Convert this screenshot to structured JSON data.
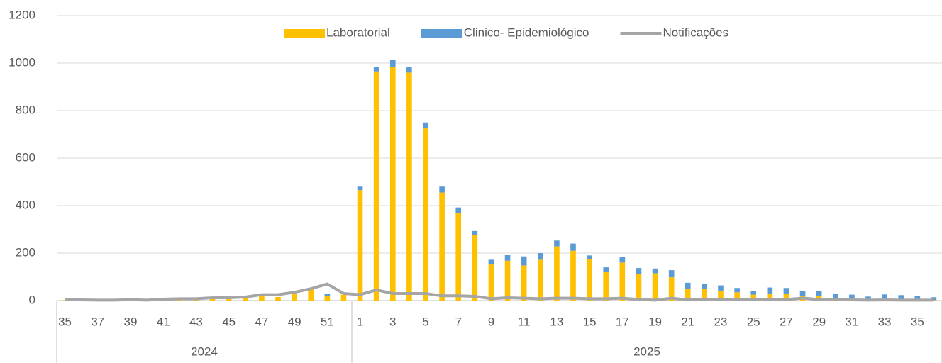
{
  "chart_data": {
    "type": "bar",
    "categories": [
      "35",
      null,
      "37",
      null,
      "39",
      null,
      "41",
      null,
      "43",
      null,
      "45",
      null,
      "47",
      null,
      "49",
      null,
      "51",
      null,
      "1",
      null,
      "3",
      null,
      "5",
      null,
      "7",
      null,
      "9",
      null,
      "11",
      null,
      "13",
      null,
      "15",
      null,
      "17",
      null,
      "19",
      null,
      "21",
      null,
      "23",
      null,
      "25",
      null,
      "27",
      null,
      "29",
      null,
      "31",
      null,
      "33",
      null,
      "35",
      null
    ],
    "category_groups": [
      {
        "label": "2024",
        "size": 18
      },
      {
        "label": "2025",
        "size": 36
      }
    ],
    "stacked": true,
    "series": [
      {
        "name": "Laboratorial",
        "color": "#ffc000",
        "values": [
          2,
          2,
          1,
          1,
          2,
          1,
          3,
          4,
          4,
          6,
          6,
          10,
          18,
          15,
          30,
          50,
          20,
          25,
          465,
          965,
          985,
          960,
          725,
          455,
          370,
          275,
          152,
          168,
          148,
          172,
          228,
          210,
          175,
          122,
          160,
          112,
          115,
          98,
          50,
          50,
          42,
          35,
          25,
          30,
          28,
          20,
          20,
          12,
          10,
          5,
          8,
          5,
          5,
          2
        ]
      },
      {
        "name": "Clinico- Epidemiológico",
        "color": "#5b9bd5",
        "values": [
          0,
          0,
          0,
          0,
          0,
          0,
          0,
          0,
          0,
          0,
          0,
          0,
          0,
          0,
          0,
          3,
          10,
          0,
          15,
          20,
          30,
          22,
          25,
          25,
          22,
          18,
          20,
          25,
          38,
          28,
          25,
          30,
          15,
          18,
          25,
          25,
          20,
          30,
          25,
          20,
          22,
          18,
          15,
          25,
          25,
          20,
          20,
          18,
          15,
          12,
          18,
          18,
          15,
          12
        ]
      },
      {
        "name": "Notificações",
        "type": "line",
        "color": "#a5a5a5",
        "values": [
          5,
          3,
          2,
          2,
          4,
          2,
          6,
          8,
          8,
          12,
          12,
          15,
          25,
          25,
          35,
          50,
          70,
          30,
          25,
          45,
          30,
          30,
          30,
          20,
          20,
          18,
          8,
          12,
          10,
          8,
          10,
          10,
          8,
          8,
          10,
          5,
          2,
          10,
          3,
          5,
          5,
          5,
          5,
          5,
          5,
          10,
          5,
          3,
          3,
          2,
          3,
          2,
          2,
          2
        ]
      }
    ],
    "ylim": [
      0,
      1200
    ],
    "yticks": [
      0,
      200,
      400,
      600,
      800,
      1000,
      1200
    ],
    "grid": true,
    "legend": "top"
  }
}
